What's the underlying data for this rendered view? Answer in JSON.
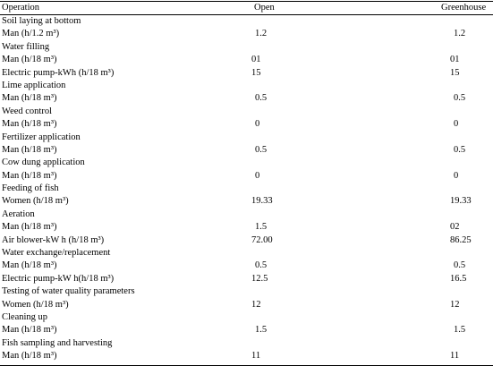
{
  "headers": {
    "operation": "Operation",
    "open": "Open",
    "greenhouse": "Greenhouse"
  },
  "rows": [
    {
      "label": "Soil laying at bottom",
      "open": "",
      "greenhouse": "",
      "section": true
    },
    {
      "label": "Man (h/1.2 m³)",
      "open": "1.2",
      "greenhouse": "1.2",
      "open_indent": 4,
      "gh_indent": 4
    },
    {
      "label": "Water filling",
      "open": "",
      "greenhouse": "",
      "section": true
    },
    {
      "label": "Man (h/18 m³)",
      "open": "01",
      "greenhouse": "01"
    },
    {
      "label": "Electric pump-kWh (h/18 m³)",
      "open": "15",
      "greenhouse": "15"
    },
    {
      "label": "Lime application",
      "open": "",
      "greenhouse": "",
      "section": true
    },
    {
      "label": "Man (h/18 m³)",
      "open": "0.5",
      "greenhouse": "0.5",
      "open_indent": 4,
      "gh_indent": 4
    },
    {
      "label": "Weed control",
      "open": "",
      "greenhouse": "",
      "section": true
    },
    {
      "label": "Man (h/18 m³)",
      "open": "0",
      "greenhouse": "0",
      "open_indent": 4,
      "gh_indent": 4
    },
    {
      "label": "Fertilizer application",
      "open": "",
      "greenhouse": "",
      "section": true
    },
    {
      "label": "Man (h/18 m³)",
      "open": "0.5",
      "greenhouse": "0.5",
      "open_indent": 4,
      "gh_indent": 4
    },
    {
      "label": "Cow dung application",
      "open": "",
      "greenhouse": "",
      "section": true
    },
    {
      "label": "Man (h/18 m³)",
      "open": "0",
      "greenhouse": "0",
      "open_indent": 4,
      "gh_indent": 4
    },
    {
      "label": "Feeding of fish",
      "open": "",
      "greenhouse": "",
      "section": true
    },
    {
      "label": "Women (h/18 m³)",
      "open": "19.33",
      "greenhouse": "19.33"
    },
    {
      "label": "Aeration",
      "open": "",
      "greenhouse": "",
      "section": true
    },
    {
      "label": "Man (h/18 m³)",
      "open": "1.5",
      "greenhouse": "02",
      "open_indent": 4
    },
    {
      "label": "Air blower-kW h (h/18 m³)",
      "open": "72.00",
      "greenhouse": "86.25"
    },
    {
      "label": "Water exchange/replacement",
      "open": "",
      "greenhouse": "",
      "section": true
    },
    {
      "label": "Man (h/18 m³)",
      "open": "0.5",
      "greenhouse": "0.5",
      "open_indent": 4,
      "gh_indent": 4
    },
    {
      "label": "Electric pump-kW h(h/18 m³)",
      "open": "12.5",
      "greenhouse": "16.5"
    },
    {
      "label": "Testing of water quality parameters",
      "open": "",
      "greenhouse": "",
      "section": true
    },
    {
      "label": "Women (h/18 m³)",
      "open": "12",
      "greenhouse": "12"
    },
    {
      "label": "Cleaning up",
      "open": "",
      "greenhouse": "",
      "section": true
    },
    {
      "label": "Man (h/18 m³)",
      "open": "1.5",
      "greenhouse": "1.5",
      "open_indent": 4,
      "gh_indent": 4
    },
    {
      "label": "Fish sampling and harvesting",
      "open": "",
      "greenhouse": "",
      "section": true
    },
    {
      "label": "Man (h/18 m³)",
      "open": "11",
      "greenhouse": "11"
    }
  ]
}
